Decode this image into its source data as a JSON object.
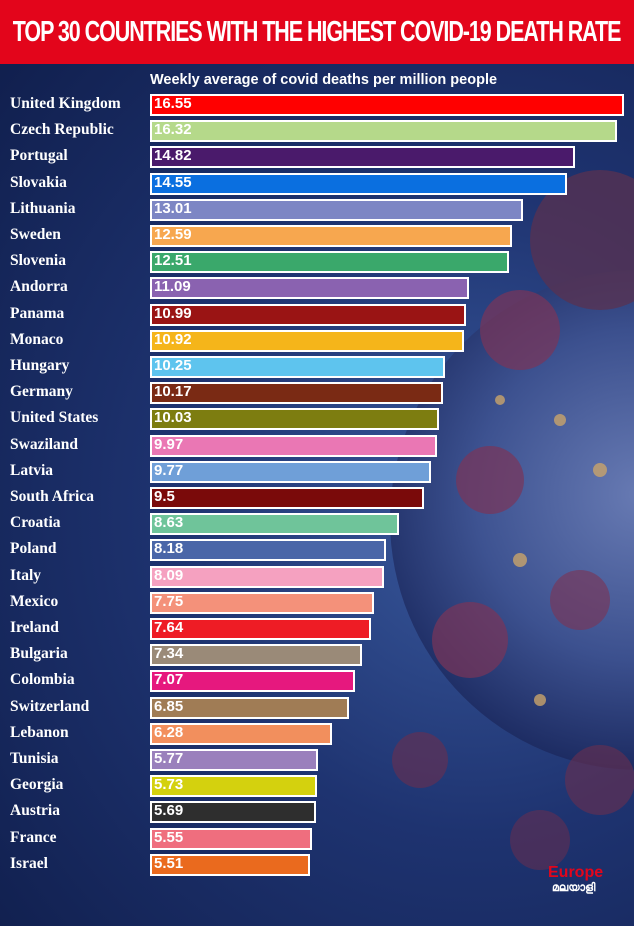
{
  "header": {
    "title": "TOP 30 COUNTRIES WITH THE HIGHEST COVID-19 DEATH RATE"
  },
  "chart_data": {
    "type": "bar",
    "orientation": "horizontal",
    "title": "TOP 30 COUNTRIES WITH THE HIGHEST COVID-19 DEATH RATE",
    "subtitle": "Weekly average of covid deaths per million people",
    "categories": [
      "United Kingdom",
      "Czech Republic",
      "Portugal",
      "Slovakia",
      "Lithuania",
      "Sweden",
      "Slovenia",
      "Andorra",
      "Panama",
      "Monaco",
      "Hungary",
      "Germany",
      "United States",
      "Swaziland",
      "Latvia",
      "South Africa",
      "Croatia",
      "Poland",
      "Italy",
      "Mexico",
      "Ireland",
      "Bulgaria",
      "Colombia",
      "Switzerland",
      "Lebanon",
      "Tunisia",
      "Georgia",
      "Austria",
      "France",
      "Israel"
    ],
    "values": [
      16.55,
      16.32,
      14.82,
      14.55,
      13.01,
      12.59,
      12.51,
      11.09,
      10.99,
      10.92,
      10.25,
      10.17,
      10.03,
      9.97,
      9.77,
      9.5,
      8.63,
      8.18,
      8.09,
      7.75,
      7.64,
      7.34,
      7.07,
      6.85,
      6.28,
      5.77,
      5.73,
      5.69,
      5.55,
      5.51
    ],
    "value_labels": [
      "16.55",
      "16.32",
      "14.82",
      "14.55",
      "13.01",
      "12.59",
      "12.51",
      "11.09",
      "10.99",
      "10.92",
      "10.25",
      "10.17",
      "10.03",
      "9.97",
      "9.77",
      "9.5",
      "8.63",
      "8.18",
      "8.09",
      "7.75",
      "7.64",
      "7.34",
      "7.07",
      "6.85",
      "6.28",
      "5.77",
      "5.73",
      "5.69",
      "5.55",
      "5.51"
    ],
    "colors": [
      "#ff0000",
      "#b5d98a",
      "#4a1a6b",
      "#0a6fe0",
      "#7d86c4",
      "#f7a74f",
      "#3aa86b",
      "#8a62b0",
      "#9a1414",
      "#f5b51a",
      "#5ec4ee",
      "#7a2a14",
      "#7d7d10",
      "#ea77b4",
      "#6f9fd8",
      "#7a0a0a",
      "#6fc49a",
      "#4a66a8",
      "#f5a1c0",
      "#f4917a",
      "#ee1c25",
      "#9a8a78",
      "#e6187e",
      "#a07c55",
      "#f28f5d",
      "#9a80bc",
      "#d4d10e",
      "#2e2e2e",
      "#ef6e7e",
      "#ea6a1e"
    ],
    "xlim": [
      0,
      16.55
    ],
    "grid": false,
    "legend": "none"
  },
  "logo": {
    "text": "Europe",
    "sub": "മലയാളി"
  }
}
